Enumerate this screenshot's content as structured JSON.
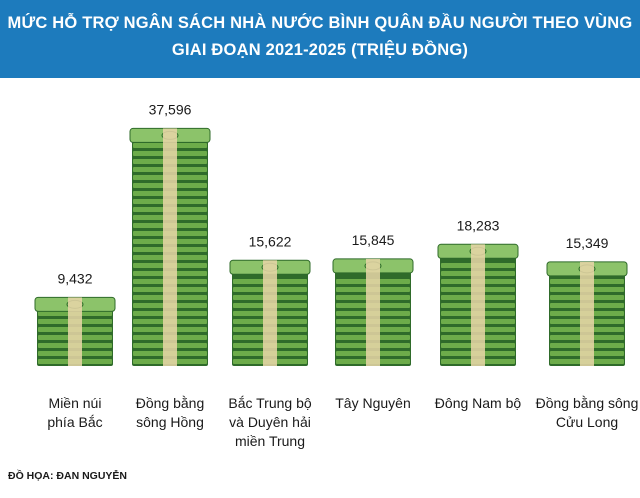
{
  "header": {
    "title_line1": "MỨC HỖ TRỢ NGÂN SÁCH NHÀ NƯỚC BÌNH QUÂN ĐẦU NGƯỜI THEO VÙNG",
    "title_line2": "GIAI ĐOẠN 2021-2025 (TRIỆU ĐỒNG)"
  },
  "source": "ĐỒ HỌA: ĐAN NGUYỄN",
  "colors": {
    "header_bg": "#1d7bbd",
    "money_dark": "#2f6b2a",
    "money_light": "#6dac4a",
    "money_face": "#8cc36a",
    "band": "#e9d6a8"
  },
  "chart_data": {
    "type": "bar",
    "title": "MỨC HỖ TRỢ NGÂN SÁCH NHÀ NƯỚC BÌNH QUÂN ĐẦU NGƯỜI THEO VÙNG GIAI ĐOẠN 2021-2025 (TRIỆU ĐỒNG)",
    "categories": [
      [
        "Miền núi",
        "phía Bắc"
      ],
      [
        "Đồng bằng",
        "sông Hồng"
      ],
      [
        "Bắc Trung bộ",
        "và Duyên hải",
        "miền Trung"
      ],
      [
        "Tây Nguyên"
      ],
      [
        "Đông Nam bộ"
      ],
      [
        "Đồng bằng sông",
        "Cửu Long"
      ]
    ],
    "values": [
      9.432,
      37.596,
      15.622,
      15.845,
      18.283,
      15.349
    ],
    "value_labels": [
      "9,432",
      "37,596",
      "15,622",
      "15,845",
      "18,283",
      "15,349"
    ],
    "ylim": [
      0,
      40
    ],
    "grid": false,
    "legend": "none"
  }
}
